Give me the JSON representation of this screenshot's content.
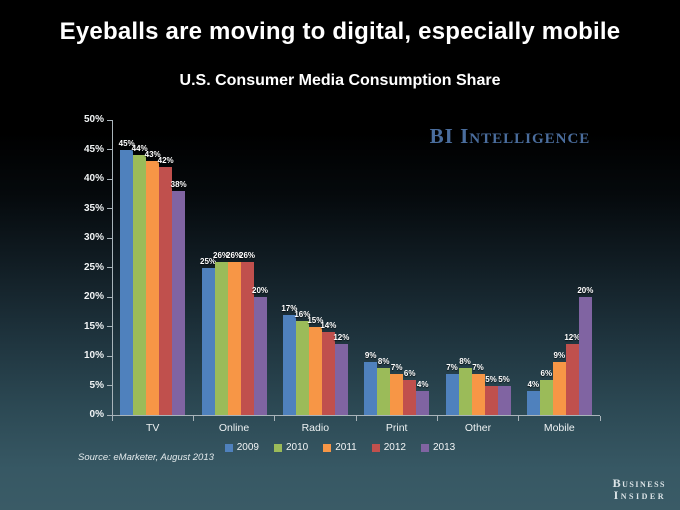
{
  "title": "Eyeballs are moving to digital, especially mobile",
  "subtitle": "U.S. Consumer Media Consumption Share",
  "logo_bi_intelligence": "BI Intelligence",
  "footer": {
    "source": "Source: eMarketer, August 2013",
    "brand_line1": "Business",
    "brand_line2": "Insider"
  },
  "colors": {
    "accent_logo_blue": "#4a6d9d",
    "text": "#ffffff",
    "axis": "#a9b4ba",
    "background_top": "#000000",
    "background_bottom": "#3a5b66"
  },
  "chart_data": {
    "type": "bar",
    "title": "U.S. Consumer Media Consumption Share",
    "categories": [
      "TV",
      "Online",
      "Radio",
      "Print",
      "Other",
      "Mobile"
    ],
    "series": [
      {
        "name": "2009",
        "color": "#4F81BD",
        "values": [
          45,
          25,
          17,
          9,
          7,
          4
        ]
      },
      {
        "name": "2010",
        "color": "#9BBB59",
        "values": [
          44,
          26,
          16,
          8,
          8,
          6
        ]
      },
      {
        "name": "2011",
        "color": "#F79646",
        "values": [
          43,
          26,
          15,
          7,
          7,
          9
        ]
      },
      {
        "name": "2012",
        "color": "#C0504D",
        "values": [
          42,
          26,
          14,
          6,
          5,
          12
        ]
      },
      {
        "name": "2013",
        "color": "#8064A2",
        "values": [
          38,
          20,
          12,
          4,
          5,
          20
        ]
      }
    ],
    "value_suffix": "%",
    "y_ticks": [
      "0%",
      "5%",
      "10%",
      "15%",
      "20%",
      "25%",
      "30%",
      "35%",
      "40%",
      "45%",
      "50%"
    ],
    "ylim": [
      0,
      50
    ],
    "grid": false,
    "legend_position": "bottom"
  }
}
